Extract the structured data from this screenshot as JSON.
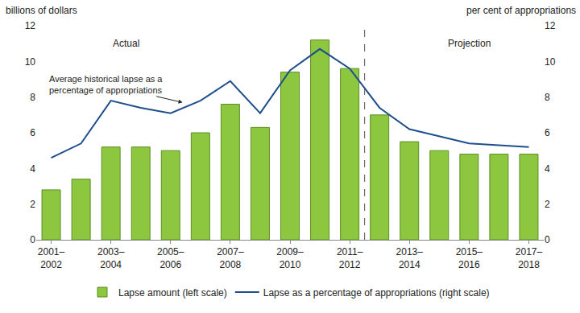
{
  "chart_data": {
    "type": "bar",
    "categories": [
      "2001–2002",
      null,
      "2003–2004",
      null,
      "2005–2006",
      null,
      "2007–2008",
      null,
      "2009–2010",
      null,
      "2011–2012",
      null,
      "2013–2014",
      null,
      "2015–2016",
      null,
      "2017–2018"
    ],
    "series": [
      {
        "name": "Lapse amount (left scale)",
        "type": "bar",
        "color": "#8dc63f",
        "values": [
          2.8,
          3.4,
          5.2,
          5.2,
          5.0,
          6.0,
          7.6,
          6.3,
          9.4,
          11.2,
          9.6,
          7.0,
          5.5,
          5.0,
          4.8,
          4.8,
          4.8
        ]
      },
      {
        "name": "Lapse as a percentage of appropriations (right scale)",
        "type": "line",
        "axis": "y2",
        "color": "#1f4e8c",
        "values": [
          4.6,
          5.4,
          7.8,
          7.4,
          7.1,
          7.8,
          8.9,
          7.1,
          9.5,
          10.7,
          9.6,
          7.4,
          6.2,
          5.8,
          5.4,
          5.3,
          5.2
        ]
      }
    ],
    "y_label": "billions of dollars",
    "y2_label": "per cent of appropriations",
    "ylim": [
      0,
      12
    ],
    "yticks": [
      0,
      2,
      4,
      6,
      8,
      10,
      12
    ],
    "y2lim": [
      0,
      12
    ],
    "y2ticks": [
      0,
      2,
      4,
      6,
      8,
      10,
      12
    ],
    "annotations": [
      {
        "text": "Actual"
      },
      {
        "text": "Projection"
      },
      {
        "text": [
          "Average historical lapse as a",
          "percentage of appropriations"
        ]
      }
    ],
    "legend": "bottom",
    "grid": false
  }
}
